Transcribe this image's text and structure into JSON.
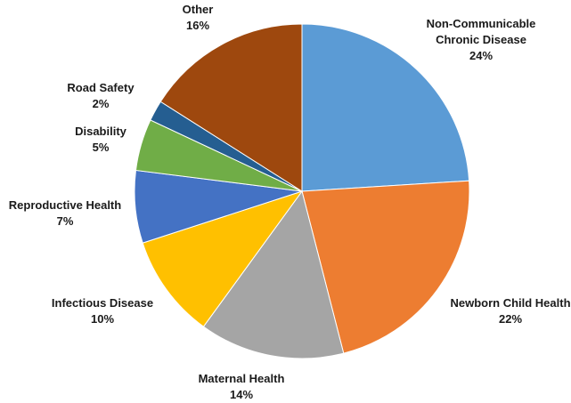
{
  "chart_data": {
    "type": "pie",
    "categories": [
      "Non-Communicable Chronic Disease",
      "Newborn Child Health",
      "Maternal Health",
      "Infectious Disease",
      "Reproductive Health",
      "Disability",
      "Road Safety",
      "Other"
    ],
    "values": [
      24,
      22,
      14,
      10,
      7,
      5,
      2,
      16
    ],
    "unit": "%",
    "label_lines": [
      [
        "Non-Communicable",
        "Chronic Disease",
        "24%"
      ],
      [
        "Newborn Child Health",
        "22%"
      ],
      [
        "Maternal Health",
        "14%"
      ],
      [
        "Infectious Disease",
        "10%"
      ],
      [
        "Reproductive Health",
        "7%"
      ],
      [
        "Disability",
        "5%"
      ],
      [
        "Road Safety",
        "2%"
      ],
      [
        "Other",
        "16%"
      ]
    ],
    "colors": [
      "#5B9BD5",
      "#ED7D31",
      "#A5A5A5",
      "#FFC000",
      "#4472C4",
      "#70AD47",
      "#255E91",
      "#9E480E"
    ],
    "start": "12 o'clock",
    "direction": "clockwise",
    "legend": "none",
    "data_labels": "outside"
  }
}
